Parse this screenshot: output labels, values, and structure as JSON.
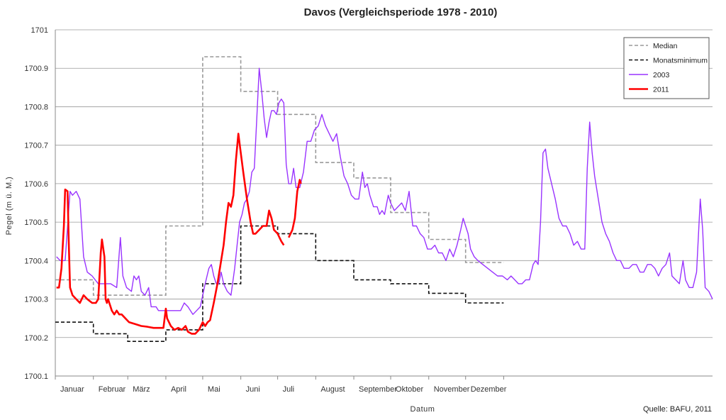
{
  "chart_data": {
    "type": "line",
    "title": "Davos  (Vergleichsperiode 1978 - 2010)",
    "xlabel": "Datum",
    "ylabel": "Pegel (m ü. M.)",
    "ylim": [
      1700.1,
      1701.0
    ],
    "yticks": [
      "1700.1",
      "1700.2",
      "1700.3",
      "1700.4",
      "1700.5",
      "1700.6",
      "1700.7",
      "1700.8",
      "1700.9",
      "1701"
    ],
    "categories": [
      "Januar",
      "Februar",
      "März",
      "April",
      "Mai",
      "Juni",
      "Juli",
      "August",
      "September",
      "Oktober",
      "November",
      "Dezember"
    ],
    "grid": "horizontal",
    "legend_position": "top-right",
    "source": "Quelle: BAFU, 2011",
    "series": [
      {
        "name": "Median",
        "style": "dashed",
        "color": "#999999",
        "monthly_values": [
          1700.35,
          1700.31,
          1700.31,
          1700.49,
          1700.93,
          1700.84,
          1700.78,
          1700.655,
          1700.615,
          1700.525,
          1700.455,
          1700.395
        ]
      },
      {
        "name": "Monatsminimum",
        "style": "dashed",
        "color": "#111111",
        "monthly_values": [
          1700.24,
          1700.21,
          1700.19,
          1700.22,
          1700.34,
          1700.49,
          1700.47,
          1700.4,
          1700.35,
          1700.34,
          1700.315,
          1700.29
        ]
      },
      {
        "name": "2003",
        "style": "solid",
        "color": "#9933ff",
        "points": [
          [
            1,
            1700.41
          ],
          [
            4,
            1700.4
          ],
          [
            8,
            1700.4
          ],
          [
            12,
            1700.58
          ],
          [
            14,
            1700.57
          ],
          [
            17,
            1700.58
          ],
          [
            20,
            1700.56
          ],
          [
            23,
            1700.41
          ],
          [
            26,
            1700.37
          ],
          [
            30,
            1700.36
          ],
          [
            35,
            1700.34
          ],
          [
            40,
            1700.34
          ],
          [
            45,
            1700.34
          ],
          [
            50,
            1700.33
          ],
          [
            53,
            1700.46
          ],
          [
            55,
            1700.36
          ],
          [
            58,
            1700.33
          ],
          [
            62,
            1700.32
          ],
          [
            64,
            1700.36
          ],
          [
            66,
            1700.35
          ],
          [
            68,
            1700.36
          ],
          [
            70,
            1700.32
          ],
          [
            73,
            1700.31
          ],
          [
            76,
            1700.33
          ],
          [
            78,
            1700.28
          ],
          [
            82,
            1700.28
          ],
          [
            84,
            1700.27
          ],
          [
            90,
            1700.27
          ],
          [
            97,
            1700.27
          ],
          [
            102,
            1700.27
          ],
          [
            105,
            1700.29
          ],
          [
            108,
            1700.28
          ],
          [
            112,
            1700.26
          ],
          [
            115,
            1700.27
          ],
          [
            118,
            1700.28
          ],
          [
            122,
            1700.34
          ],
          [
            125,
            1700.38
          ],
          [
            127,
            1700.39
          ],
          [
            129,
            1700.36
          ],
          [
            131,
            1700.34
          ],
          [
            133,
            1700.34
          ],
          [
            135,
            1700.37
          ],
          [
            137,
            1700.34
          ],
          [
            140,
            1700.32
          ],
          [
            143,
            1700.31
          ],
          [
            146,
            1700.38
          ],
          [
            148,
            1700.44
          ],
          [
            150,
            1700.5
          ],
          [
            152,
            1700.52
          ],
          [
            154,
            1700.55
          ],
          [
            156,
            1700.56
          ],
          [
            158,
            1700.58
          ],
          [
            160,
            1700.63
          ],
          [
            162,
            1700.64
          ],
          [
            164,
            1700.77
          ],
          [
            166,
            1700.9
          ],
          [
            168,
            1700.84
          ],
          [
            170,
            1700.77
          ],
          [
            172,
            1700.72
          ],
          [
            174,
            1700.76
          ],
          [
            176,
            1700.79
          ],
          [
            178,
            1700.79
          ],
          [
            180,
            1700.78
          ],
          [
            182,
            1700.81
          ],
          [
            184,
            1700.82
          ],
          [
            186,
            1700.81
          ],
          [
            188,
            1700.65
          ],
          [
            190,
            1700.6
          ],
          [
            192,
            1700.6
          ],
          [
            194,
            1700.64
          ],
          [
            196,
            1700.59
          ],
          [
            199,
            1700.59
          ],
          [
            202,
            1700.63
          ],
          [
            205,
            1700.71
          ],
          [
            208,
            1700.71
          ],
          [
            211,
            1700.74
          ],
          [
            214,
            1700.75
          ],
          [
            217,
            1700.78
          ],
          [
            220,
            1700.75
          ],
          [
            223,
            1700.73
          ],
          [
            226,
            1700.71
          ],
          [
            229,
            1700.73
          ],
          [
            232,
            1700.67
          ],
          [
            235,
            1700.62
          ],
          [
            238,
            1700.6
          ],
          [
            241,
            1700.57
          ],
          [
            244,
            1700.56
          ],
          [
            247,
            1700.56
          ],
          [
            250,
            1700.63
          ],
          [
            252,
            1700.59
          ],
          [
            254,
            1700.6
          ],
          [
            256,
            1700.57
          ],
          [
            259,
            1700.54
          ],
          [
            262,
            1700.54
          ],
          [
            264,
            1700.52
          ],
          [
            266,
            1700.53
          ],
          [
            268,
            1700.52
          ],
          [
            271,
            1700.57
          ],
          [
            273,
            1700.55
          ],
          [
            276,
            1700.53
          ],
          [
            279,
            1700.54
          ],
          [
            282,
            1700.55
          ],
          [
            285,
            1700.53
          ],
          [
            288,
            1700.58
          ],
          [
            291,
            1700.49
          ],
          [
            294,
            1700.49
          ],
          [
            297,
            1700.47
          ],
          [
            300,
            1700.46
          ],
          [
            303,
            1700.43
          ],
          [
            306,
            1700.43
          ],
          [
            309,
            1700.44
          ],
          [
            312,
            1700.42
          ],
          [
            315,
            1700.42
          ],
          [
            318,
            1700.4
          ],
          [
            321,
            1700.43
          ],
          [
            324,
            1700.41
          ],
          [
            327,
            1700.44
          ],
          [
            330,
            1700.48
          ],
          [
            332,
            1700.51
          ],
          [
            334,
            1700.49
          ],
          [
            336,
            1700.47
          ],
          [
            338,
            1700.43
          ],
          [
            341,
            1700.41
          ],
          [
            344,
            1700.4
          ],
          [
            348,
            1700.39
          ],
          [
            352,
            1700.38
          ],
          [
            356,
            1700.37
          ],
          [
            360,
            1700.36
          ],
          [
            364,
            1700.36
          ],
          [
            368,
            1700.35
          ],
          [
            371,
            1700.36
          ],
          [
            374,
            1700.35
          ],
          [
            377,
            1700.34
          ],
          [
            380,
            1700.34
          ],
          [
            383,
            1700.35
          ],
          [
            386,
            1700.35
          ],
          [
            389,
            1700.39
          ],
          [
            391,
            1700.4
          ],
          [
            393,
            1700.39
          ],
          [
            395,
            1700.5
          ],
          [
            397,
            1700.68
          ],
          [
            399,
            1700.69
          ],
          [
            401,
            1700.64
          ],
          [
            404,
            1700.6
          ],
          [
            407,
            1700.56
          ],
          [
            410,
            1700.51
          ],
          [
            413,
            1700.49
          ],
          [
            416,
            1700.49
          ],
          [
            419,
            1700.47
          ],
          [
            422,
            1700.44
          ],
          [
            425,
            1700.45
          ],
          [
            428,
            1700.43
          ],
          [
            431,
            1700.43
          ],
          [
            433,
            1700.64
          ],
          [
            435,
            1700.76
          ],
          [
            437,
            1700.68
          ],
          [
            439,
            1700.62
          ],
          [
            442,
            1700.56
          ],
          [
            445,
            1700.5
          ],
          [
            448,
            1700.47
          ],
          [
            451,
            1700.45
          ],
          [
            454,
            1700.42
          ],
          [
            457,
            1700.4
          ],
          [
            460,
            1700.4
          ],
          [
            463,
            1700.38
          ],
          [
            467,
            1700.38
          ],
          [
            470,
            1700.39
          ],
          [
            473,
            1700.39
          ],
          [
            476,
            1700.37
          ],
          [
            479,
            1700.37
          ],
          [
            482,
            1700.39
          ],
          [
            485,
            1700.39
          ],
          [
            488,
            1700.38
          ],
          [
            491,
            1700.36
          ],
          [
            494,
            1700.38
          ],
          [
            497,
            1700.39
          ],
          [
            500,
            1700.42
          ],
          [
            502,
            1700.36
          ],
          [
            505,
            1700.35
          ],
          [
            508,
            1700.34
          ],
          [
            511,
            1700.4
          ],
          [
            513,
            1700.35
          ],
          [
            516,
            1700.33
          ],
          [
            519,
            1700.33
          ],
          [
            522,
            1700.37
          ],
          [
            525,
            1700.56
          ],
          [
            527,
            1700.48
          ],
          [
            529,
            1700.33
          ],
          [
            532,
            1700.32
          ],
          [
            535,
            1700.3
          ]
        ]
      },
      {
        "name": "2011",
        "style": "solid",
        "color": "#ff0000",
        "points": [
          [
            1,
            1700.33
          ],
          [
            3,
            1700.33
          ],
          [
            5,
            1700.38
          ],
          [
            7,
            1700.49
          ],
          [
            8,
            1700.585
          ],
          [
            10,
            1700.58
          ],
          [
            11,
            1700.44
          ],
          [
            12,
            1700.33
          ],
          [
            14,
            1700.31
          ],
          [
            17,
            1700.3
          ],
          [
            20,
            1700.29
          ],
          [
            23,
            1700.31
          ],
          [
            26,
            1700.3
          ],
          [
            30,
            1700.29
          ],
          [
            33,
            1700.29
          ],
          [
            35,
            1700.3
          ],
          [
            37,
            1700.42
          ],
          [
            38,
            1700.455
          ],
          [
            40,
            1700.41
          ],
          [
            41,
            1700.3
          ],
          [
            42,
            1700.29
          ],
          [
            43,
            1700.3
          ],
          [
            44,
            1700.29
          ],
          [
            46,
            1700.27
          ],
          [
            48,
            1700.26
          ],
          [
            50,
            1700.27
          ],
          [
            52,
            1700.26
          ],
          [
            54,
            1700.26
          ],
          [
            57,
            1700.25
          ],
          [
            60,
            1700.24
          ],
          [
            65,
            1700.235
          ],
          [
            70,
            1700.23
          ],
          [
            75,
            1700.228
          ],
          [
            80,
            1700.225
          ],
          [
            85,
            1700.225
          ],
          [
            88,
            1700.225
          ],
          [
            90,
            1700.275
          ],
          [
            91,
            1700.25
          ],
          [
            94,
            1700.23
          ],
          [
            97,
            1700.22
          ],
          [
            100,
            1700.225
          ],
          [
            103,
            1700.22
          ],
          [
            106,
            1700.23
          ],
          [
            108,
            1700.215
          ],
          [
            111,
            1700.21
          ],
          [
            114,
            1700.21
          ],
          [
            117,
            1700.22
          ],
          [
            120,
            1700.24
          ],
          [
            122,
            1700.23
          ],
          [
            124,
            1700.24
          ],
          [
            126,
            1700.245
          ],
          [
            129,
            1700.29
          ],
          [
            132,
            1700.34
          ],
          [
            135,
            1700.4
          ],
          [
            137,
            1700.44
          ],
          [
            139,
            1700.5
          ],
          [
            141,
            1700.55
          ],
          [
            143,
            1700.54
          ],
          [
            145,
            1700.57
          ],
          [
            147,
            1700.66
          ],
          [
            149,
            1700.73
          ],
          [
            151,
            1700.68
          ],
          [
            153,
            1700.63
          ],
          [
            156,
            1700.56
          ],
          [
            159,
            1700.5
          ],
          [
            161,
            1700.47
          ],
          [
            163,
            1700.47
          ],
          [
            166,
            1700.48
          ],
          [
            169,
            1700.49
          ],
          [
            172,
            1700.49
          ],
          [
            174,
            1700.53
          ],
          [
            176,
            1700.51
          ],
          [
            178,
            1700.48
          ],
          [
            181,
            1700.47
          ],
          [
            184,
            1700.45
          ],
          [
            186,
            1700.44
          ],
          null,
          [
            190,
            1700.46
          ],
          [
            193,
            1700.48
          ],
          [
            195,
            1700.51
          ],
          [
            197,
            1700.58
          ],
          [
            199,
            1700.61
          ],
          [
            200,
            1700.6
          ]
        ]
      }
    ]
  }
}
